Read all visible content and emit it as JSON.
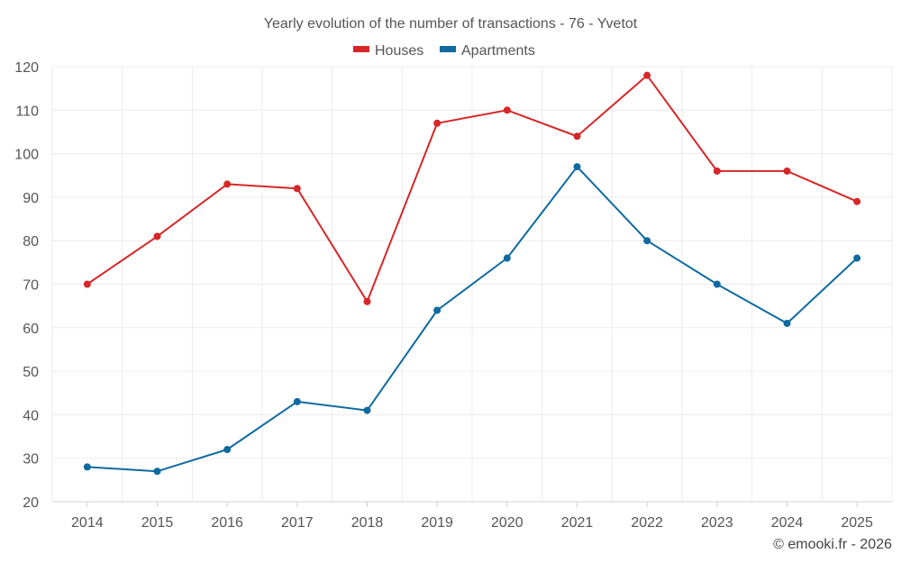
{
  "chart_data": {
    "type": "line",
    "title": "Yearly evolution of the number of transactions - 76 - Yvetot",
    "categories": [
      "2014",
      "2015",
      "2016",
      "2017",
      "2018",
      "2019",
      "2020",
      "2021",
      "2022",
      "2023",
      "2024",
      "2025"
    ],
    "series": [
      {
        "name": "Houses",
        "color": "#d62728",
        "values": [
          70,
          81,
          93,
          92,
          66,
          107,
          110,
          104,
          118,
          96,
          96,
          89
        ]
      },
      {
        "name": "Apartments",
        "color": "#0e6aa0",
        "values": [
          28,
          27,
          32,
          43,
          41,
          64,
          76,
          97,
          80,
          70,
          61,
          76
        ]
      }
    ],
    "ylim": [
      20,
      120
    ],
    "yticks": [
      20,
      30,
      40,
      50,
      60,
      70,
      80,
      90,
      100,
      110,
      120
    ],
    "grid": true,
    "legend": "top-center"
  },
  "credit": "© emooki.fr - 2026"
}
